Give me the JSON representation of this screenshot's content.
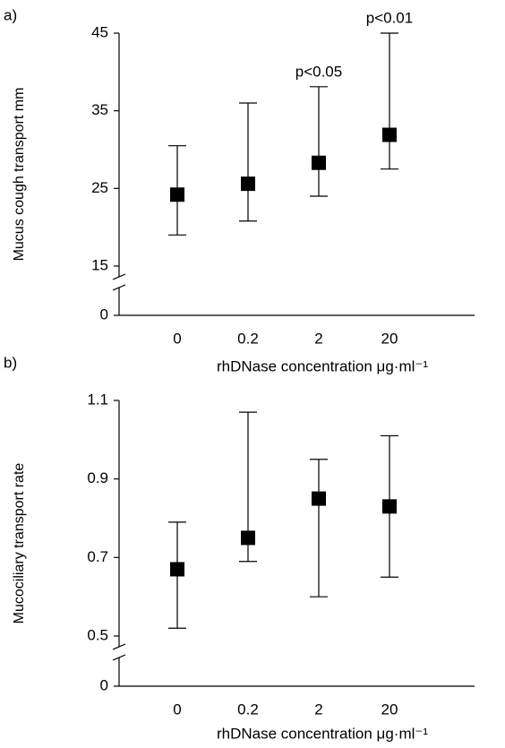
{
  "chart_data": [
    {
      "type": "errorbar",
      "panel": "a)",
      "y_label": "Mucus cough transport  mm",
      "x_label": "rhDNase concentration  μg·ml⁻¹",
      "categories": [
        "0",
        "0.2",
        "2",
        "20"
      ],
      "series": [
        {
          "color": "#000000",
          "values": [
            24.2,
            25.6,
            28.3,
            31.9
          ],
          "lower": [
            19.0,
            20.8,
            24.0,
            27.5
          ],
          "upper": [
            30.5,
            36.0,
            38.1,
            45.0
          ]
        }
      ],
      "significance": [
        null,
        null,
        "p<0.05",
        "p<0.01"
      ],
      "ylim": [
        0,
        45
      ],
      "yticks": [
        0,
        15,
        25,
        35,
        45
      ],
      "axis_break": [
        0,
        15
      ]
    },
    {
      "type": "errorbar",
      "panel": "b)",
      "y_label": "Mucociliary transport rate",
      "x_label": "rhDNase concentration  μg·ml⁻¹",
      "categories": [
        "0",
        "0.2",
        "2",
        "20"
      ],
      "series": [
        {
          "color": "#000000",
          "values": [
            0.67,
            0.75,
            0.85,
            0.83
          ],
          "lower": [
            0.52,
            0.69,
            0.6,
            0.65
          ],
          "upper": [
            0.79,
            1.07,
            0.95,
            1.01
          ]
        }
      ],
      "ylim": [
        0,
        1.1
      ],
      "yticks": [
        0,
        {
          "value": 0.5,
          "label": "0.5"
        },
        {
          "value": 0.7,
          "label": "0.7"
        },
        {
          "value": 0.9,
          "label": "0.9"
        },
        {
          "value": 1.1,
          "label": "1.1"
        }
      ],
      "axis_break": [
        0,
        0.5
      ]
    }
  ]
}
